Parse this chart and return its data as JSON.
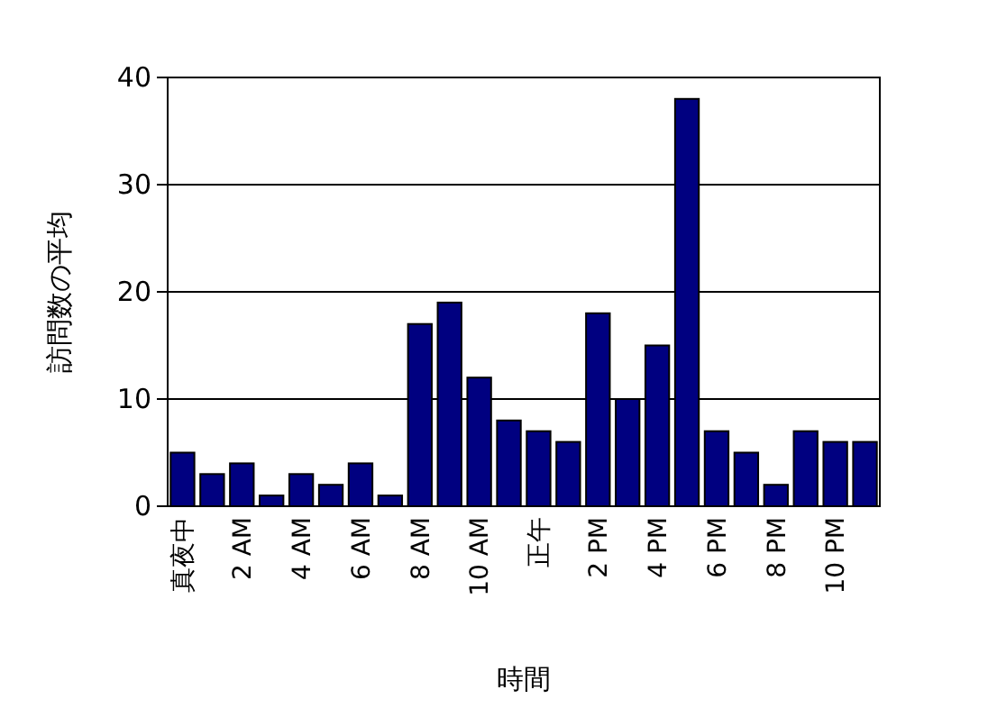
{
  "chart_data": {
    "type": "bar",
    "xlabel": "時間",
    "ylabel": "訪問数の平均",
    "categories": [
      "真夜中",
      null,
      "2 AM",
      null,
      "4 AM",
      null,
      "6 AM",
      null,
      "8 AM",
      null,
      "10 AM",
      null,
      "正午",
      null,
      "2 PM",
      null,
      "4 PM",
      null,
      "6 PM",
      null,
      "8 PM",
      null,
      "10 PM",
      null
    ],
    "values": [
      5,
      3,
      4,
      1,
      3,
      2,
      4,
      1,
      17,
      19,
      12,
      8,
      7,
      6,
      18,
      10,
      15,
      38,
      7,
      5,
      2,
      7,
      6,
      6
    ],
    "color": "#000080",
    "ylim": [
      0,
      40
    ],
    "yticks": [
      0,
      10,
      20,
      30,
      40
    ],
    "grid": "y"
  }
}
